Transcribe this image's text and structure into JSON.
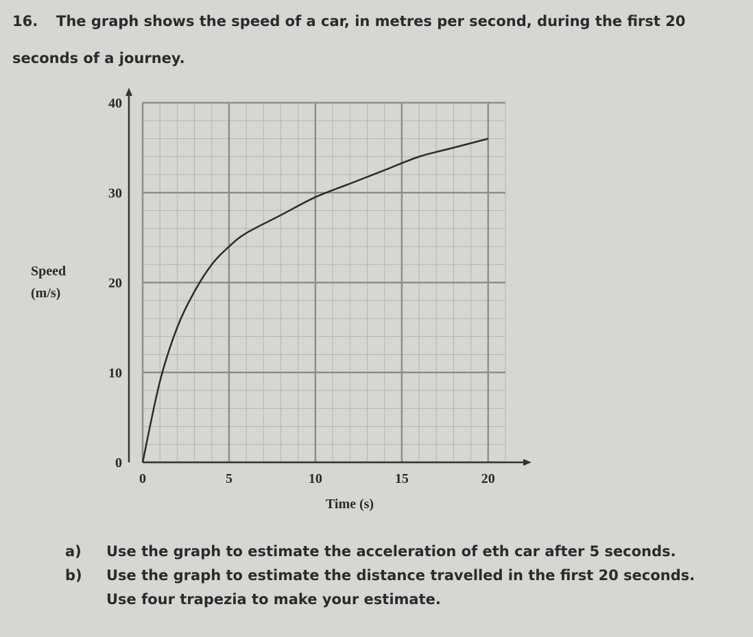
{
  "question": {
    "number": "16.",
    "text_lines": [
      "The graph shows the speed of a car, in metres per second, during the first 20",
      "seconds of a journey."
    ]
  },
  "chart_data": {
    "type": "line",
    "x_label": "Time (s)",
    "y_label_lines": [
      "Speed",
      "(m/s)"
    ],
    "x": [
      0,
      1,
      2,
      3,
      4,
      5,
      6,
      8,
      10,
      12,
      14,
      16,
      18,
      20
    ],
    "series": [
      {
        "color": "#2a2a2a",
        "values": [
          0,
          9,
          15,
          19,
          22,
          24,
          25.5,
          27.5,
          29.5,
          31,
          32.5,
          34,
          35,
          36
        ]
      }
    ],
    "xlim": [
      0,
      21
    ],
    "ylim": [
      0,
      40
    ],
    "xticks": [
      0,
      5,
      10,
      15,
      20
    ],
    "yticks": [
      0,
      10,
      20,
      30,
      40
    ],
    "grid": true,
    "minor_grid": true
  },
  "parts": [
    {
      "label": "a)",
      "lines": [
        "Use the graph to estimate the acceleration of eth car after 5 seconds."
      ]
    },
    {
      "label": "b)",
      "lines": [
        "Use the graph to estimate the distance travelled in the first 20 seconds.",
        "Use four trapezia to make your estimate."
      ]
    }
  ]
}
